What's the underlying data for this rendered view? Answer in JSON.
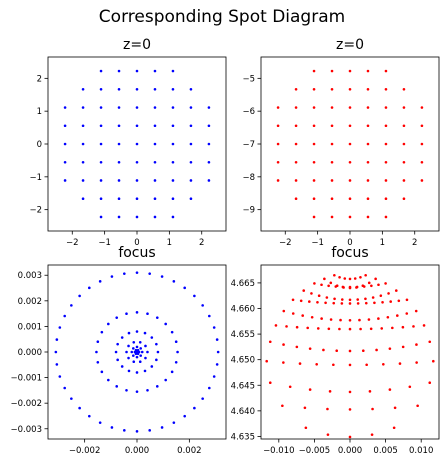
{
  "suptitle": "Corresponding Spot Diagram",
  "chart_data": [
    {
      "type": "scatter",
      "title": "z=0",
      "color": "#0000ff",
      "xlim": [
        -2.75,
        2.75
      ],
      "ylim": [
        -2.65,
        2.65
      ],
      "xticks": [
        -2,
        -1,
        0,
        1,
        2
      ],
      "yticks": [
        -2,
        -1,
        0,
        1,
        2
      ],
      "xtick_labels": [
        "−2",
        "−1",
        "0",
        "1",
        "2"
      ],
      "ytick_labels": [
        "−2",
        "−1",
        "0",
        "1",
        "2"
      ],
      "center": [
        0,
        0
      ],
      "pupil_radius": 2.5,
      "pattern": "square grid of points inside circular pupil (9 rings)"
    },
    {
      "type": "scatter",
      "title": "z=0",
      "color": "#ff0000",
      "xlim": [
        -2.75,
        2.75
      ],
      "ylim": [
        -9.65,
        -4.35
      ],
      "xticks": [
        -2,
        -1,
        0,
        1,
        2
      ],
      "yticks": [
        -5,
        -6,
        -7,
        -8,
        -9
      ],
      "xtick_labels": [
        "−2",
        "−1",
        "0",
        "1",
        "2"
      ],
      "ytick_labels": [
        "−5",
        "−6",
        "−7",
        "−8",
        "−9"
      ],
      "center": [
        0,
        -7
      ],
      "pupil_radius": 2.5,
      "pattern": "same grid as blue pupil, shifted to y = −7"
    },
    {
      "type": "scatter",
      "title": "focus",
      "color": "#0000ff",
      "xlim": [
        -0.0034,
        0.0034
      ],
      "ylim": [
        -0.0034,
        0.0034
      ],
      "xticks": [
        -0.002,
        0,
        0.002
      ],
      "yticks": [
        0.003,
        0.002,
        0.001,
        0,
        -0.001,
        -0.002,
        -0.003
      ],
      "xtick_labels": [
        "−0.002",
        "0.000",
        "0.002"
      ],
      "ytick_labels": [
        "0.003",
        "0.002",
        "0.001",
        "0.000",
        "−0.001",
        "−0.002",
        "−0.003"
      ],
      "rings": [
        {
          "radius": 0.0031,
          "points": 40
        },
        {
          "radius": 0.00155,
          "points": 24
        },
        {
          "radius": 0.0008,
          "points": 16
        },
        {
          "radius": 0.0004,
          "points": 10
        },
        {
          "radius": 0.0002,
          "points": 8
        },
        {
          "radius": 8e-05,
          "points": 6
        }
      ]
    },
    {
      "type": "scatter",
      "title": "focus",
      "color": "#ff0000",
      "xlim": [
        -0.0125,
        0.0125
      ],
      "ylim": [
        4.6345,
        4.6685
      ],
      "xticks": [
        -0.01,
        -0.005,
        0,
        0.005,
        0.01
      ],
      "yticks": [
        4.665,
        4.66,
        4.655,
        4.65,
        4.645,
        4.64,
        4.635
      ],
      "xtick_labels": [
        "−0.010",
        "−0.005",
        "0.000",
        "0.005",
        "0.010"
      ],
      "ytick_labels": [
        "4.665",
        "4.660",
        "4.655",
        "4.650",
        "4.645",
        "4.640",
        "4.635"
      ],
      "pattern": "caustic: points spread along concentric arcs, denser near top (y ≈ 4.666)"
    }
  ]
}
